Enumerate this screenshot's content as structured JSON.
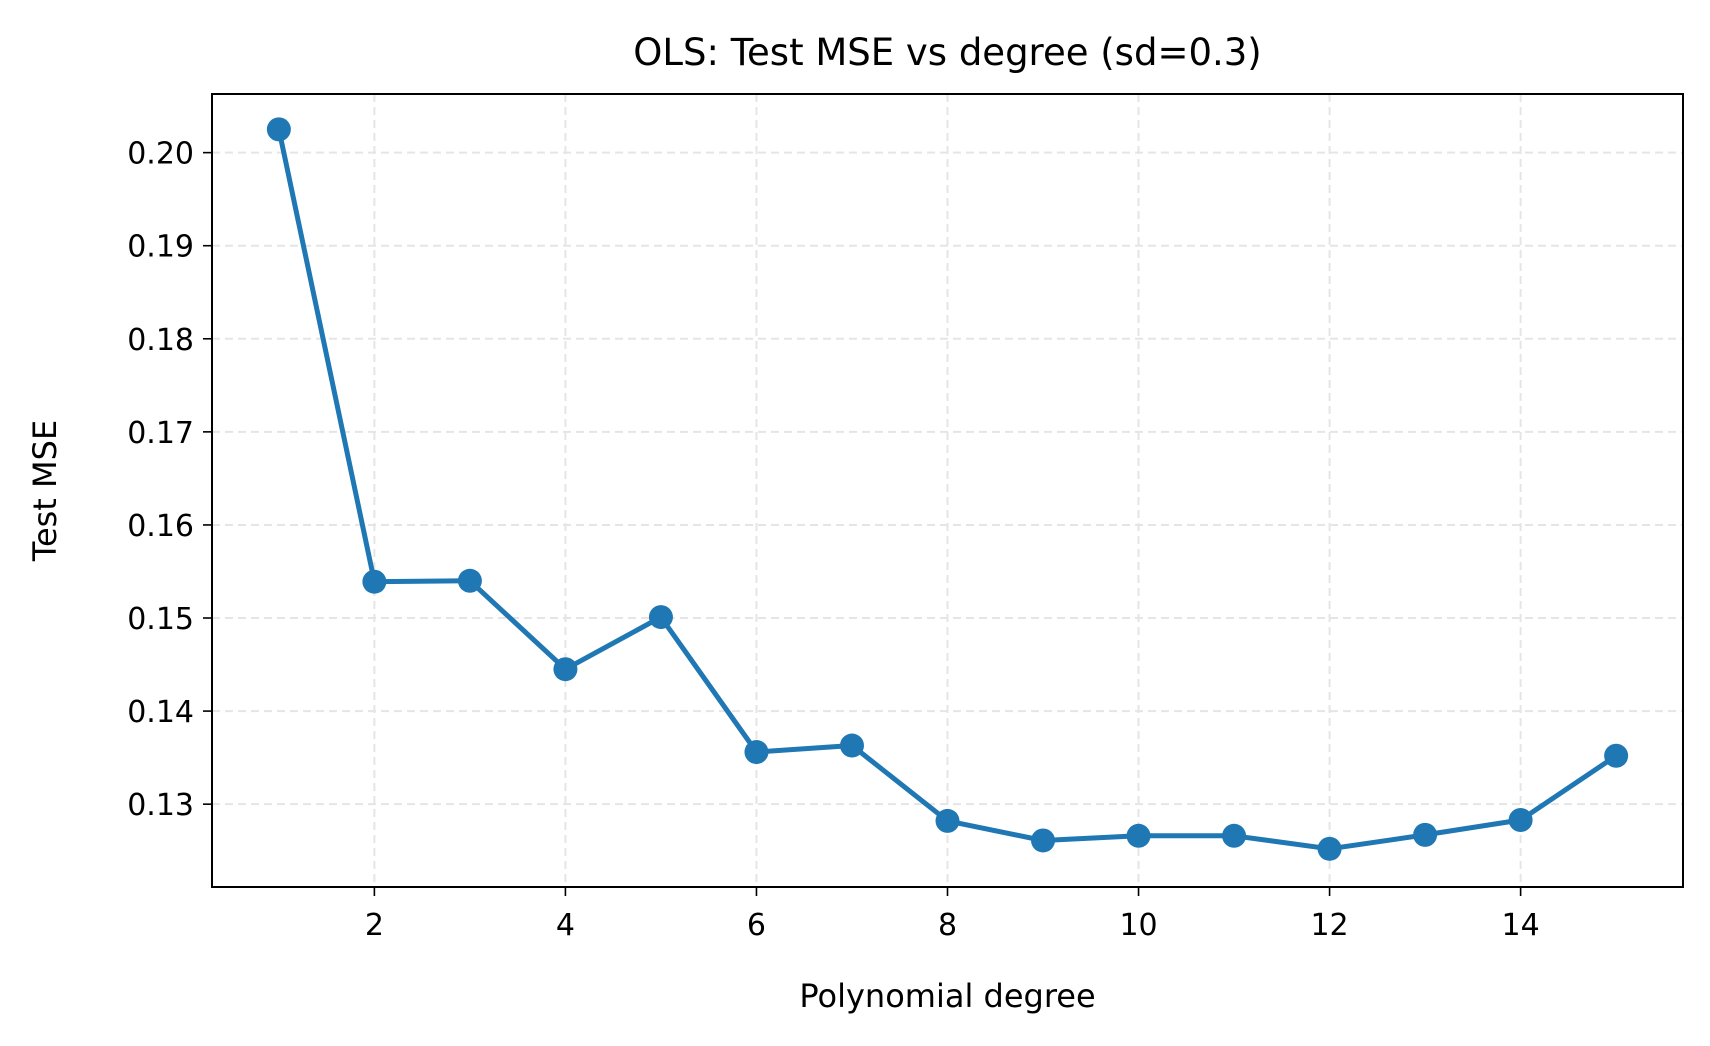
{
  "chart_data": {
    "type": "line",
    "title": "OLS: Test MSE vs degree (sd=0.3)",
    "xlabel": "Polynomial degree",
    "ylabel": "Test MSE",
    "x": [
      1,
      2,
      3,
      4,
      5,
      6,
      7,
      8,
      9,
      10,
      11,
      12,
      13,
      14,
      15
    ],
    "series": [
      {
        "values": [
          0.2025,
          0.1539,
          0.154,
          0.1445,
          0.1501,
          0.1356,
          0.1363,
          0.1282,
          0.1261,
          0.1266,
          0.1266,
          0.1252,
          0.1267,
          0.1283,
          0.1352
        ],
        "color": "#1f77b4"
      }
    ],
    "xlim": [
      0.3,
      15.7
    ],
    "ylim": [
      0.1211,
      0.2063
    ],
    "xticks": [
      2,
      4,
      6,
      8,
      10,
      12,
      14
    ],
    "xtick_labels": [
      "2",
      "4",
      "6",
      "8",
      "10",
      "12",
      "14"
    ],
    "yticks": [
      0.13,
      0.14,
      0.15,
      0.16,
      0.17,
      0.18,
      0.19,
      0.2
    ],
    "ytick_labels": [
      "0.13",
      "0.14",
      "0.15",
      "0.16",
      "0.17",
      "0.18",
      "0.19",
      "0.20"
    ],
    "grid": true,
    "grid_style": "dashed",
    "markers": "circle"
  }
}
